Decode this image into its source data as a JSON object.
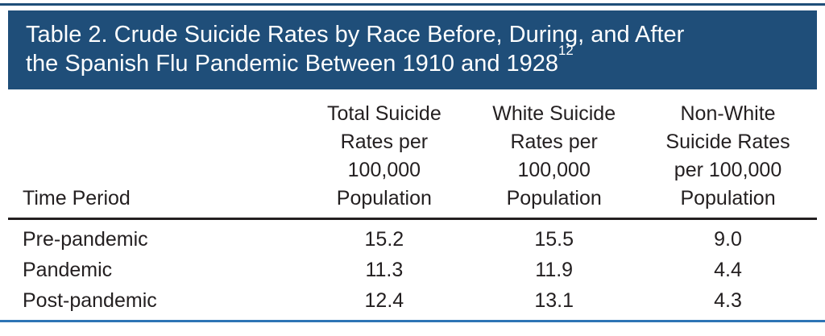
{
  "banner": {
    "line1": "Table 2. Crude Suicide Rates by Race Before, During, and After",
    "line2": "the Spanish Flu Pandemic Between 1910 and 1928",
    "superscript": "12"
  },
  "table": {
    "header": {
      "col1": "Time Period",
      "col2_lines": [
        "Total Suicide",
        "Rates per",
        "100,000",
        "Population"
      ],
      "col3_lines": [
        "White Suicide",
        "Rates per",
        "100,000",
        "Population"
      ],
      "col4_lines": [
        "Non-White",
        "Suicide Rates",
        "per 100,000",
        "Population"
      ]
    },
    "rows": [
      [
        "Pre-pandemic",
        "15.2",
        "15.5",
        "9.0"
      ],
      [
        "Pandemic",
        "11.3",
        "11.9",
        "4.4"
      ],
      [
        "Post-pandemic",
        "12.4",
        "13.1",
        "4.3"
      ]
    ]
  },
  "chart_data": {
    "type": "table",
    "title": "Table 2. Crude Suicide Rates by Race Before, During, and After the Spanish Flu Pandemic Between 1910 and 1928",
    "citation_superscript": "12",
    "columns": [
      "Time Period",
      "Total Suicide Rates per 100,000 Population",
      "White Suicide Rates per 100,000 Population",
      "Non-White Suicide Rates per 100,000 Population"
    ],
    "categories": [
      "Pre-pandemic",
      "Pandemic",
      "Post-pandemic"
    ],
    "series": [
      {
        "name": "Total Suicide Rates per 100,000 Population",
        "values": [
          15.2,
          11.3,
          12.4
        ]
      },
      {
        "name": "White Suicide Rates per 100,000 Population",
        "values": [
          15.5,
          11.9,
          13.1
        ]
      },
      {
        "name": "Non-White Suicide Rates per 100,000 Population",
        "values": [
          9.0,
          4.4,
          4.3
        ]
      }
    ]
  },
  "colors": {
    "banner_bg": "#1F4E79",
    "banner_text": "#FFFFFF",
    "body_text": "#231F20",
    "header_rule": "#231F20",
    "top_rule": "#1F4E79",
    "bottom_rule": "#2E74B5"
  }
}
